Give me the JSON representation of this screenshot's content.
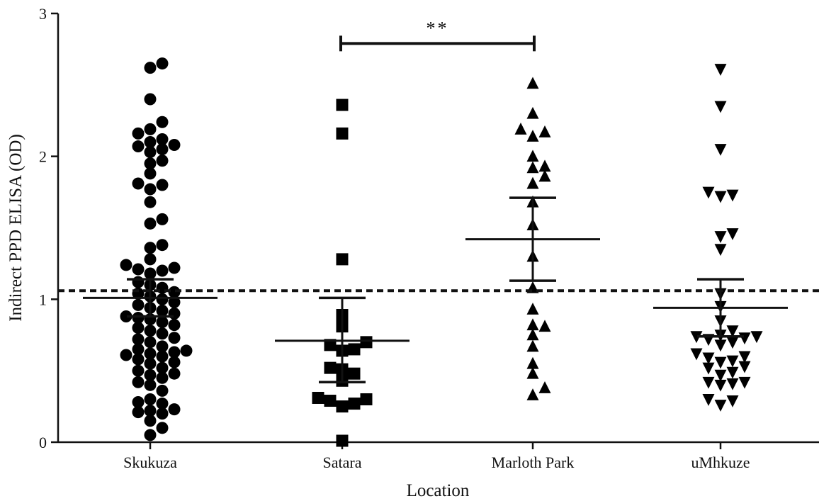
{
  "chart_data": {
    "type": "scatter",
    "xlabel": "Location",
    "ylabel": "Indirect PPD ELISA (OD)",
    "ylim": [
      0,
      3
    ],
    "yticks": [
      "0",
      "1",
      "2",
      "3"
    ],
    "categories": [
      "Skukuza",
      "Satara",
      "Marloth Park",
      "uMhkuze"
    ],
    "cutoff": 1.06,
    "significance": {
      "label": "**",
      "from": "Satara",
      "to": "Marloth Park",
      "y": 2.79
    },
    "series": [
      {
        "category": "Skukuza",
        "marker": "circle",
        "mean": 1.01,
        "ci": [
          0.88,
          1.14
        ],
        "values": [
          0.05,
          0.1,
          0.15,
          0.2,
          0.21,
          0.22,
          0.23,
          0.27,
          0.28,
          0.3,
          0.36,
          0.4,
          0.42,
          0.45,
          0.47,
          0.48,
          0.5,
          0.52,
          0.55,
          0.56,
          0.58,
          0.6,
          0.61,
          0.62,
          0.63,
          0.64,
          0.65,
          0.67,
          0.7,
          0.72,
          0.73,
          0.76,
          0.78,
          0.8,
          0.82,
          0.84,
          0.86,
          0.87,
          0.88,
          0.9,
          0.92,
          0.94,
          0.96,
          0.98,
          1.0,
          1.02,
          1.04,
          1.05,
          1.08,
          1.1,
          1.12,
          1.18,
          1.2,
          1.21,
          1.22,
          1.24,
          1.28,
          1.36,
          1.38,
          1.53,
          1.56,
          1.68,
          1.77,
          1.8,
          1.81,
          1.88,
          1.95,
          1.97,
          2.03,
          2.05,
          2.07,
          2.08,
          2.1,
          2.12,
          2.16,
          2.19,
          2.24,
          2.4,
          2.62,
          2.65
        ]
      },
      {
        "category": "Satara",
        "marker": "square",
        "mean": 0.71,
        "ci": [
          0.42,
          1.01
        ],
        "values": [
          0.01,
          0.25,
          0.27,
          0.29,
          0.3,
          0.31,
          0.43,
          0.48,
          0.51,
          0.52,
          0.64,
          0.65,
          0.68,
          0.7,
          0.81,
          0.89,
          1.28,
          2.16,
          2.36
        ]
      },
      {
        "category": "Marloth Park",
        "marker": "triangle-up",
        "mean": 1.42,
        "ci": [
          1.13,
          1.71
        ],
        "values": [
          0.33,
          0.38,
          0.48,
          0.55,
          0.67,
          0.75,
          0.81,
          0.82,
          0.93,
          1.08,
          1.3,
          1.52,
          1.68,
          1.81,
          1.86,
          1.92,
          1.93,
          2.0,
          2.14,
          2.17,
          2.19,
          2.3,
          2.51
        ]
      },
      {
        "category": "uMhkuze",
        "marker": "triangle-down",
        "mean": 0.94,
        "ci": [
          0.74,
          1.14
        ],
        "values": [
          0.26,
          0.29,
          0.3,
          0.4,
          0.41,
          0.42,
          0.42,
          0.47,
          0.49,
          0.52,
          0.53,
          0.56,
          0.57,
          0.59,
          0.6,
          0.62,
          0.68,
          0.7,
          0.72,
          0.73,
          0.74,
          0.74,
          0.75,
          0.78,
          0.85,
          0.95,
          1.04,
          1.35,
          1.44,
          1.46,
          1.72,
          1.73,
          1.75,
          2.05,
          2.35,
          2.61
        ]
      }
    ]
  }
}
